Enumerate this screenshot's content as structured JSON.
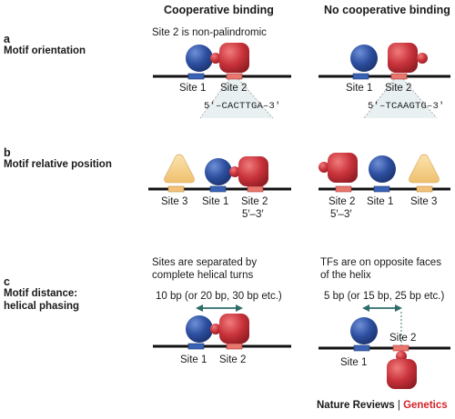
{
  "colors": {
    "blue": "#2d4fa0",
    "red": "#c8323a",
    "yellow": "#f6d28b",
    "blue_site": "#3a62b5",
    "red_site": "#e8786e",
    "yellow_site": "#f3c27a",
    "accent": "#d2232a"
  },
  "headers": {
    "cooperative": "Cooperative binding",
    "no_cooperative": "No cooperative binding"
  },
  "panel_a": {
    "letter": "a",
    "title": "Motif orientation",
    "note": "Site 2 is non-palindromic",
    "left": {
      "site1": "Site 1",
      "site2": "Site 2",
      "seq": "5′–CACTTGA–3′"
    },
    "right": {
      "site1": "Site 1",
      "site2": "Site 2",
      "seq": "5′–TCAAGTG–3′"
    }
  },
  "panel_b": {
    "letter": "b",
    "title": "Motif relative position",
    "left": {
      "site3": "Site 3",
      "site1": "Site 1",
      "site2": "Site 2",
      "dir": "5′–3′"
    },
    "right": {
      "site2": "Site 2",
      "site1": "Site 1",
      "site3": "Site 3",
      "dir": "5′–3′"
    }
  },
  "panel_c": {
    "letter": "c",
    "title_line1": "Motif distance:",
    "title_line2": "helical phasing",
    "left": {
      "note_line1": "Sites are separated by",
      "note_line2": "complete helical turns",
      "distance": "10 bp (or 20 bp, 30 bp etc.)",
      "site1": "Site 1",
      "site2": "Site 2"
    },
    "right": {
      "note_line1": "TFs are on opposite faces",
      "note_line2": "of the helix",
      "distance": "5 bp (or 15 bp, 25 bp etc.)",
      "site1": "Site 1",
      "site2": "Site 2"
    }
  },
  "footer": {
    "journal": "Nature Reviews",
    "separator": "|",
    "section": "Genetics"
  }
}
